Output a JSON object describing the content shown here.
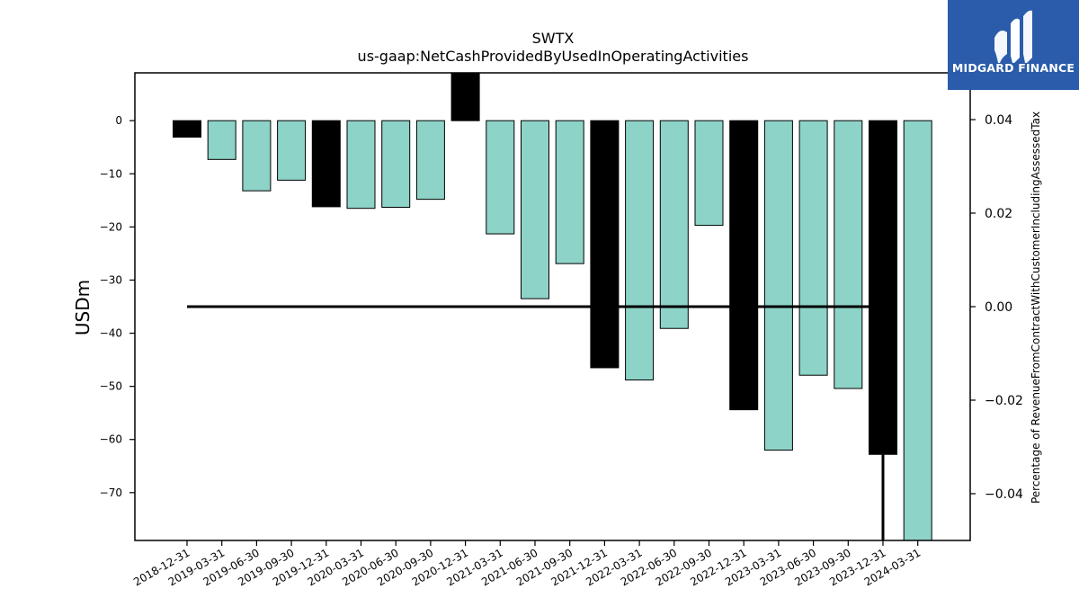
{
  "logo": {
    "text": "MIDGARD FINANCE",
    "icon": "midgard-logo-icon",
    "background": "#2a5cab"
  },
  "chart_data": {
    "type": "bar",
    "title": "SWTX",
    "subtitle": "us-gaap:NetCashProvidedByUsedInOperatingActivities",
    "ylabel": "USDm",
    "y2label": "Percentage of RevenueFromContractWithCustomerIncludingAssessedTax",
    "ylim": [
      -79,
      9
    ],
    "y2lim": [
      -0.05,
      0.05
    ],
    "yticks": [
      0,
      -10,
      -20,
      -30,
      -40,
      -50,
      -60,
      -70
    ],
    "y2ticks": [
      0.04,
      0.02,
      0.0,
      -0.02,
      -0.04
    ],
    "y2ticklabels": [
      "0.04",
      "0.02",
      "0.00",
      "−0.02",
      "−0.04"
    ],
    "categories": [
      "2018-12-31",
      "2019-03-31",
      "2019-06-30",
      "2019-09-30",
      "2019-12-31",
      "2020-03-31",
      "2020-06-30",
      "2020-09-30",
      "2020-12-31",
      "2021-03-31",
      "2021-06-30",
      "2021-09-30",
      "2021-12-31",
      "2022-03-31",
      "2022-06-30",
      "2022-09-30",
      "2022-12-31",
      "2023-03-31",
      "2023-06-30",
      "2023-09-30",
      "2023-12-31",
      "2024-03-31"
    ],
    "values": [
      -3.1,
      -7.3,
      -13.2,
      -11.2,
      -16.2,
      -16.5,
      -16.3,
      -14.8,
      9.5,
      -21.3,
      -33.5,
      -26.9,
      -46.5,
      -48.8,
      -39.1,
      -19.7,
      -54.4,
      -62.0,
      -47.9,
      -50.4,
      -62.8,
      -79.0
    ],
    "highlight": [
      true,
      false,
      false,
      false,
      true,
      false,
      false,
      false,
      true,
      false,
      false,
      false,
      true,
      false,
      false,
      false,
      true,
      false,
      false,
      false,
      true,
      false
    ],
    "ratio_line": {
      "categories": [
        "2018-12-31",
        "2019-03-31",
        "2019-06-30",
        "2019-09-30",
        "2019-12-31",
        "2020-03-31",
        "2020-06-30",
        "2020-09-30",
        "2020-12-31",
        "2021-03-31",
        "2021-06-30",
        "2021-09-30",
        "2021-12-31",
        "2022-03-31",
        "2022-06-30",
        "2022-09-30",
        "2022-12-31",
        "2023-03-31",
        "2023-06-30",
        "2023-09-30",
        "2023-12-31"
      ],
      "values": [
        0,
        0,
        0,
        0,
        0,
        0,
        0,
        0,
        0,
        0,
        0,
        0,
        0,
        0,
        0,
        0,
        0,
        0,
        0,
        0,
        0
      ],
      "drop_to": -0.05
    },
    "colors": {
      "bar": "#8dd3c7",
      "highlight": "#000000",
      "edge": "#000000",
      "line": "#000000"
    },
    "grid": false
  }
}
